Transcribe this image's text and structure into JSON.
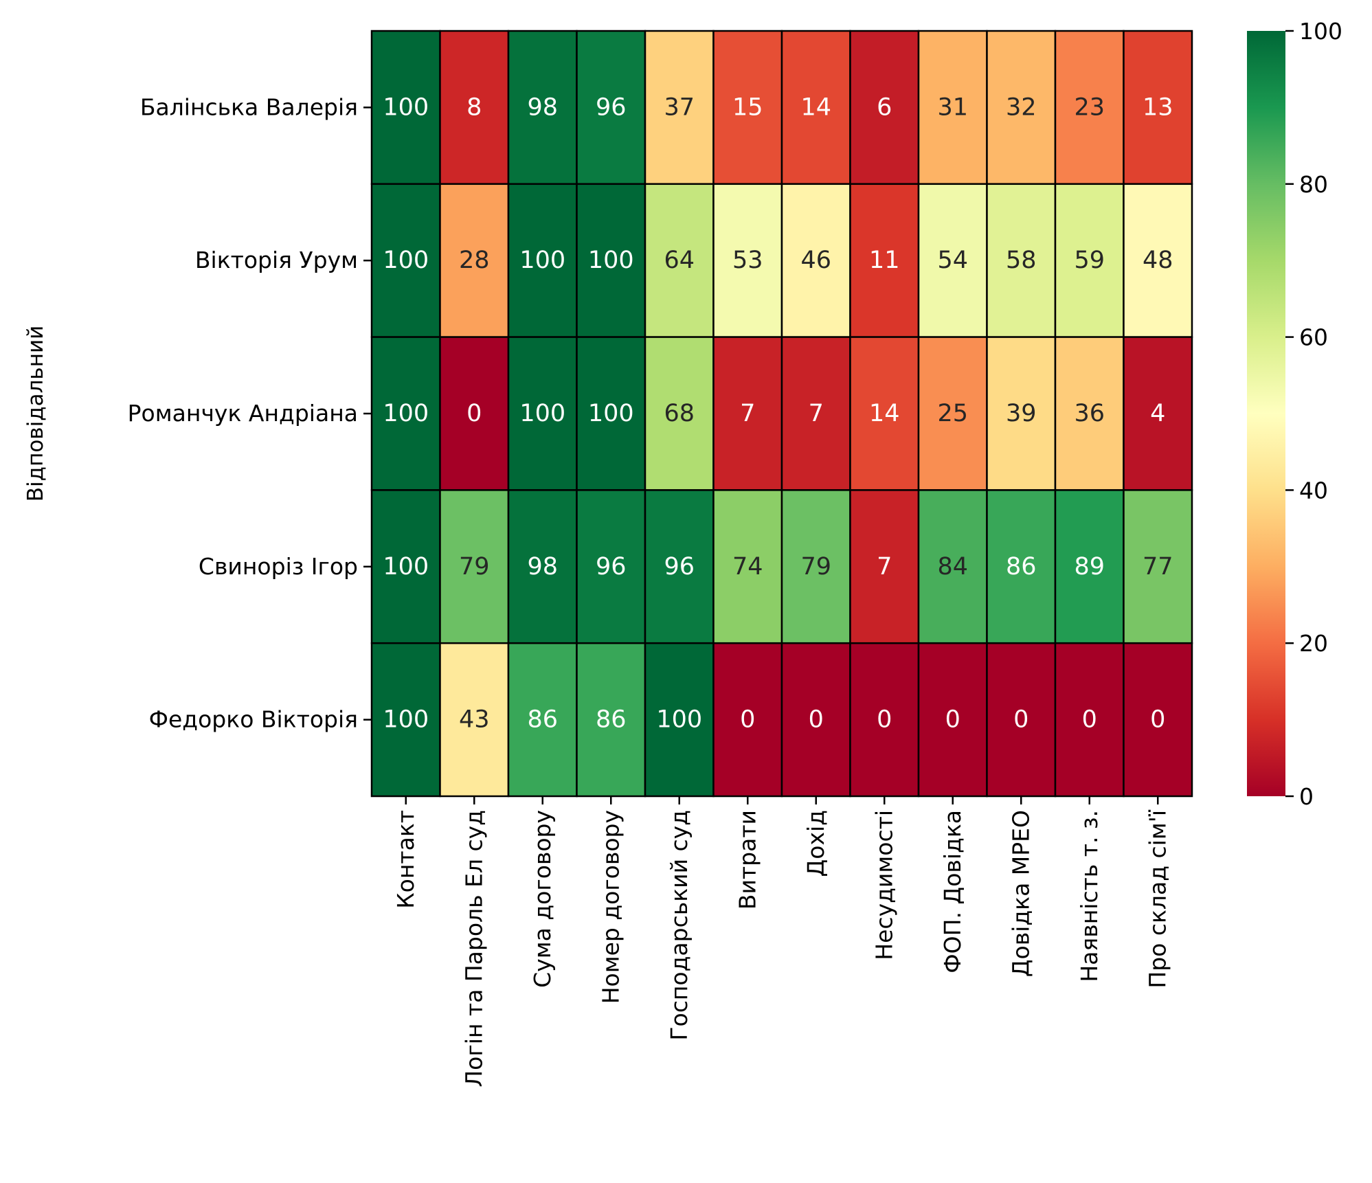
{
  "chart_data": {
    "type": "heatmap",
    "title": "",
    "xlabel": "",
    "ylabel": "Відповідальний",
    "rows": [
      "Балінська Валерія",
      "Вікторія Урум",
      "Романчук Андріана",
      "Свиноріз Ігор",
      "Федорко Вікторія"
    ],
    "columns": [
      "Контакт",
      "Логін та Пароль Ел суд",
      "Сума договору",
      "Номер договору",
      "Господарський суд",
      "Витрати",
      "Дохід",
      "Несудимості",
      "ФОП. Довідка",
      "Довідка МРЕО",
      "Наявність т. з.",
      "Про склад сім'ї"
    ],
    "values": [
      [
        100,
        8,
        98,
        96,
        37,
        15,
        14,
        6,
        31,
        32,
        23,
        13
      ],
      [
        100,
        28,
        100,
        100,
        64,
        53,
        46,
        11,
        54,
        58,
        59,
        48
      ],
      [
        100,
        0,
        100,
        100,
        68,
        7,
        7,
        14,
        25,
        39,
        36,
        4
      ],
      [
        100,
        79,
        98,
        96,
        96,
        74,
        79,
        7,
        84,
        86,
        89,
        77
      ],
      [
        100,
        43,
        86,
        86,
        100,
        0,
        0,
        0,
        0,
        0,
        0,
        0
      ]
    ],
    "colormap": "RdYlGn",
    "vmin": 0,
    "vmax": 100,
    "colorbar_ticks": [
      "0",
      "20",
      "40",
      "60",
      "80",
      "100"
    ],
    "grid": false,
    "cell_borders": true
  }
}
